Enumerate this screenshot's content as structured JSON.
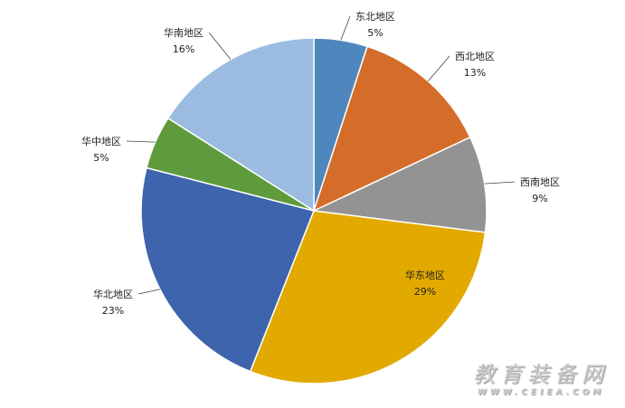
{
  "chart_data": {
    "type": "pie",
    "start": "top, clockwise",
    "slices": [
      {
        "label": "东北地区",
        "value": 5,
        "value_label": "5%",
        "color": "#4f86be"
      },
      {
        "label": "西北地区",
        "value": 13,
        "value_label": "13%",
        "color": "#d46d2a"
      },
      {
        "label": "西南地区",
        "value": 9,
        "value_label": "9%",
        "color": "#939393"
      },
      {
        "label": "华东地区",
        "value": 29,
        "value_label": "29%",
        "color": "#e2aa00"
      },
      {
        "label": "华北地区",
        "value": 23,
        "value_label": "23%",
        "color": "#3d64ad"
      },
      {
        "label": "华中地区",
        "value": 5,
        "value_label": "5%",
        "color": "#5f9b3c"
      },
      {
        "label": "华南地区",
        "value": 16,
        "value_label": "16%",
        "color": "#9bbbe1"
      }
    ],
    "legend": "none"
  },
  "watermark": {
    "title": "教育装备网",
    "url": "WWW.CEIEA.COM"
  }
}
